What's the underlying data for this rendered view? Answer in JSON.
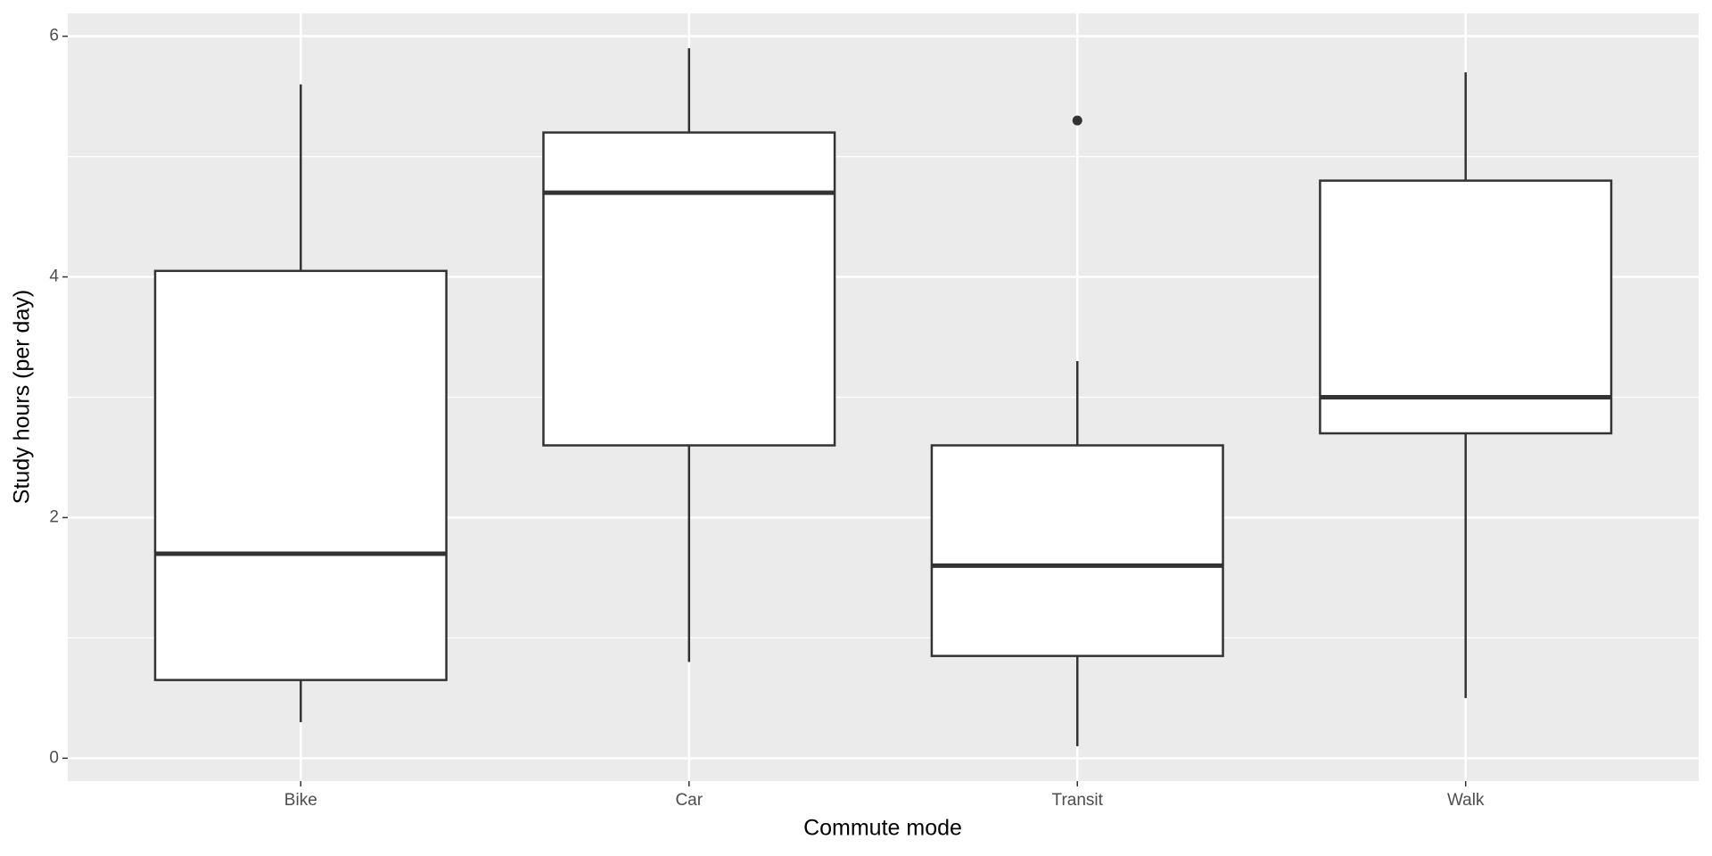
{
  "chart_data": {
    "type": "box",
    "x_label": "Commute mode",
    "y_label": "Study hours (per day)",
    "categories": [
      "Bike",
      "Car",
      "Transit",
      "Walk"
    ],
    "stats": [
      {
        "low": 0.3,
        "q1": 0.65,
        "median": 1.7,
        "q3": 4.05,
        "high": 5.6,
        "outliers": []
      },
      {
        "low": 0.8,
        "q1": 2.6,
        "median": 4.7,
        "q3": 5.2,
        "high": 5.9,
        "outliers": []
      },
      {
        "low": 0.1,
        "q1": 0.85,
        "median": 1.6,
        "q3": 2.6,
        "high": 3.3,
        "outliers": [
          5.3
        ]
      },
      {
        "low": 0.5,
        "q1": 2.7,
        "median": 3.0,
        "q3": 4.8,
        "high": 5.7,
        "outliers": []
      }
    ],
    "color": "#333333",
    "fill": "#ffffff",
    "panel_color": "#ebebeb",
    "ylim": [
      -0.19,
      6.19
    ],
    "yticks": [
      0,
      2,
      4,
      6
    ],
    "grid": true
  }
}
